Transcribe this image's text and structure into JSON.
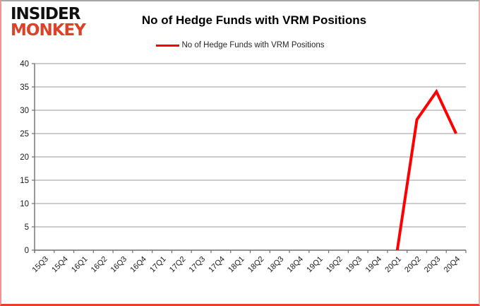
{
  "branding": {
    "logo_line1": "INSIDER",
    "logo_line2": "MONKEY",
    "logo_accent_color": "#dd4127"
  },
  "header": {
    "title": "No of Hedge Funds with VRM Positions"
  },
  "legend": {
    "label": "No of Hedge Funds with VRM Positions",
    "color": "#ff0000"
  },
  "chart_data": {
    "type": "line",
    "title": "No of Hedge Funds with VRM Positions",
    "categories": [
      "15Q3",
      "15Q4",
      "16Q1",
      "16Q2",
      "16Q3",
      "16Q4",
      "17Q1",
      "17Q2",
      "17Q3",
      "17Q4",
      "18Q1",
      "18Q2",
      "18Q3",
      "18Q4",
      "19Q1",
      "19Q2",
      "19Q3",
      "19Q4",
      "20Q1",
      "20Q2",
      "20Q3",
      "20Q4"
    ],
    "series": [
      {
        "name": "No of Hedge Funds with VRM Positions",
        "color": "#ff0000",
        "values": [
          null,
          null,
          null,
          null,
          null,
          null,
          null,
          null,
          null,
          null,
          null,
          null,
          null,
          null,
          null,
          null,
          null,
          null,
          0,
          28,
          34,
          25
        ]
      }
    ],
    "xlabel": "",
    "ylabel": "",
    "ylim": [
      0,
      40
    ],
    "ytick_step": 5,
    "yticks": [
      0,
      5,
      10,
      15,
      20,
      25,
      30,
      35,
      40
    ],
    "grid": true,
    "gridline_color": "#989898",
    "axis_color": "#6f6f6f",
    "tick_label_color": "#1a1a1a",
    "legend_position": "top"
  }
}
